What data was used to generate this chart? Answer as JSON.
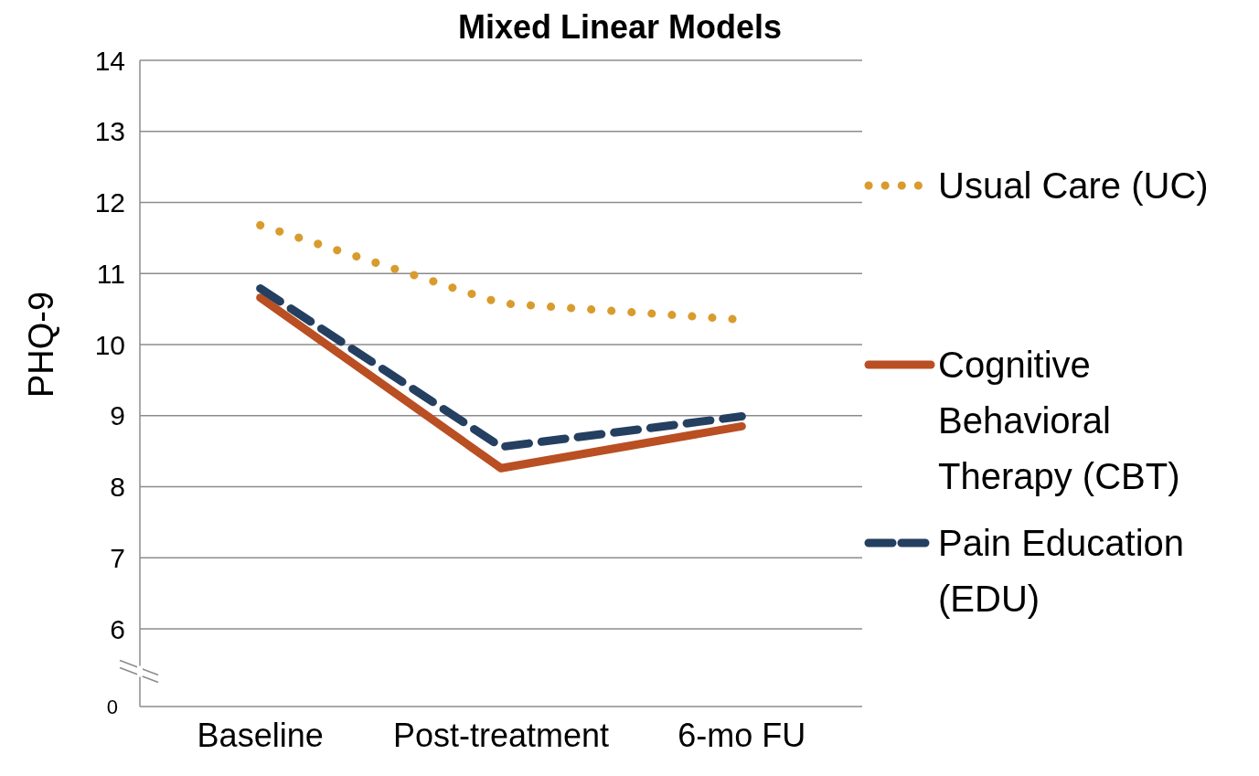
{
  "chart_data": {
    "type": "line",
    "title": "Mixed Linear Models",
    "ylabel": "PHQ-9",
    "categories": [
      "Baseline",
      "Post-treatment",
      "6-mo FU"
    ],
    "ylim": [
      6,
      14
    ],
    "yticks": [
      6,
      7,
      8,
      9,
      10,
      11,
      12,
      13,
      14
    ],
    "grid": "y",
    "legend": "right",
    "annotations": [
      "0"
    ],
    "series": [
      {
        "name": "Usual Care (UC)",
        "color": "#d89c2e",
        "line_style": "dotted",
        "values": [
          11.68,
          10.58,
          10.35
        ]
      },
      {
        "name": "Cognitive Behavioral Therapy (CBT)",
        "color": "#b94f22",
        "line_style": "solid",
        "values": [
          10.66,
          8.26,
          8.85
        ]
      },
      {
        "name": "Pain Education (EDU)",
        "color": "#243f60",
        "line_style": "dashed",
        "values": [
          10.79,
          8.56,
          8.99
        ]
      }
    ]
  }
}
